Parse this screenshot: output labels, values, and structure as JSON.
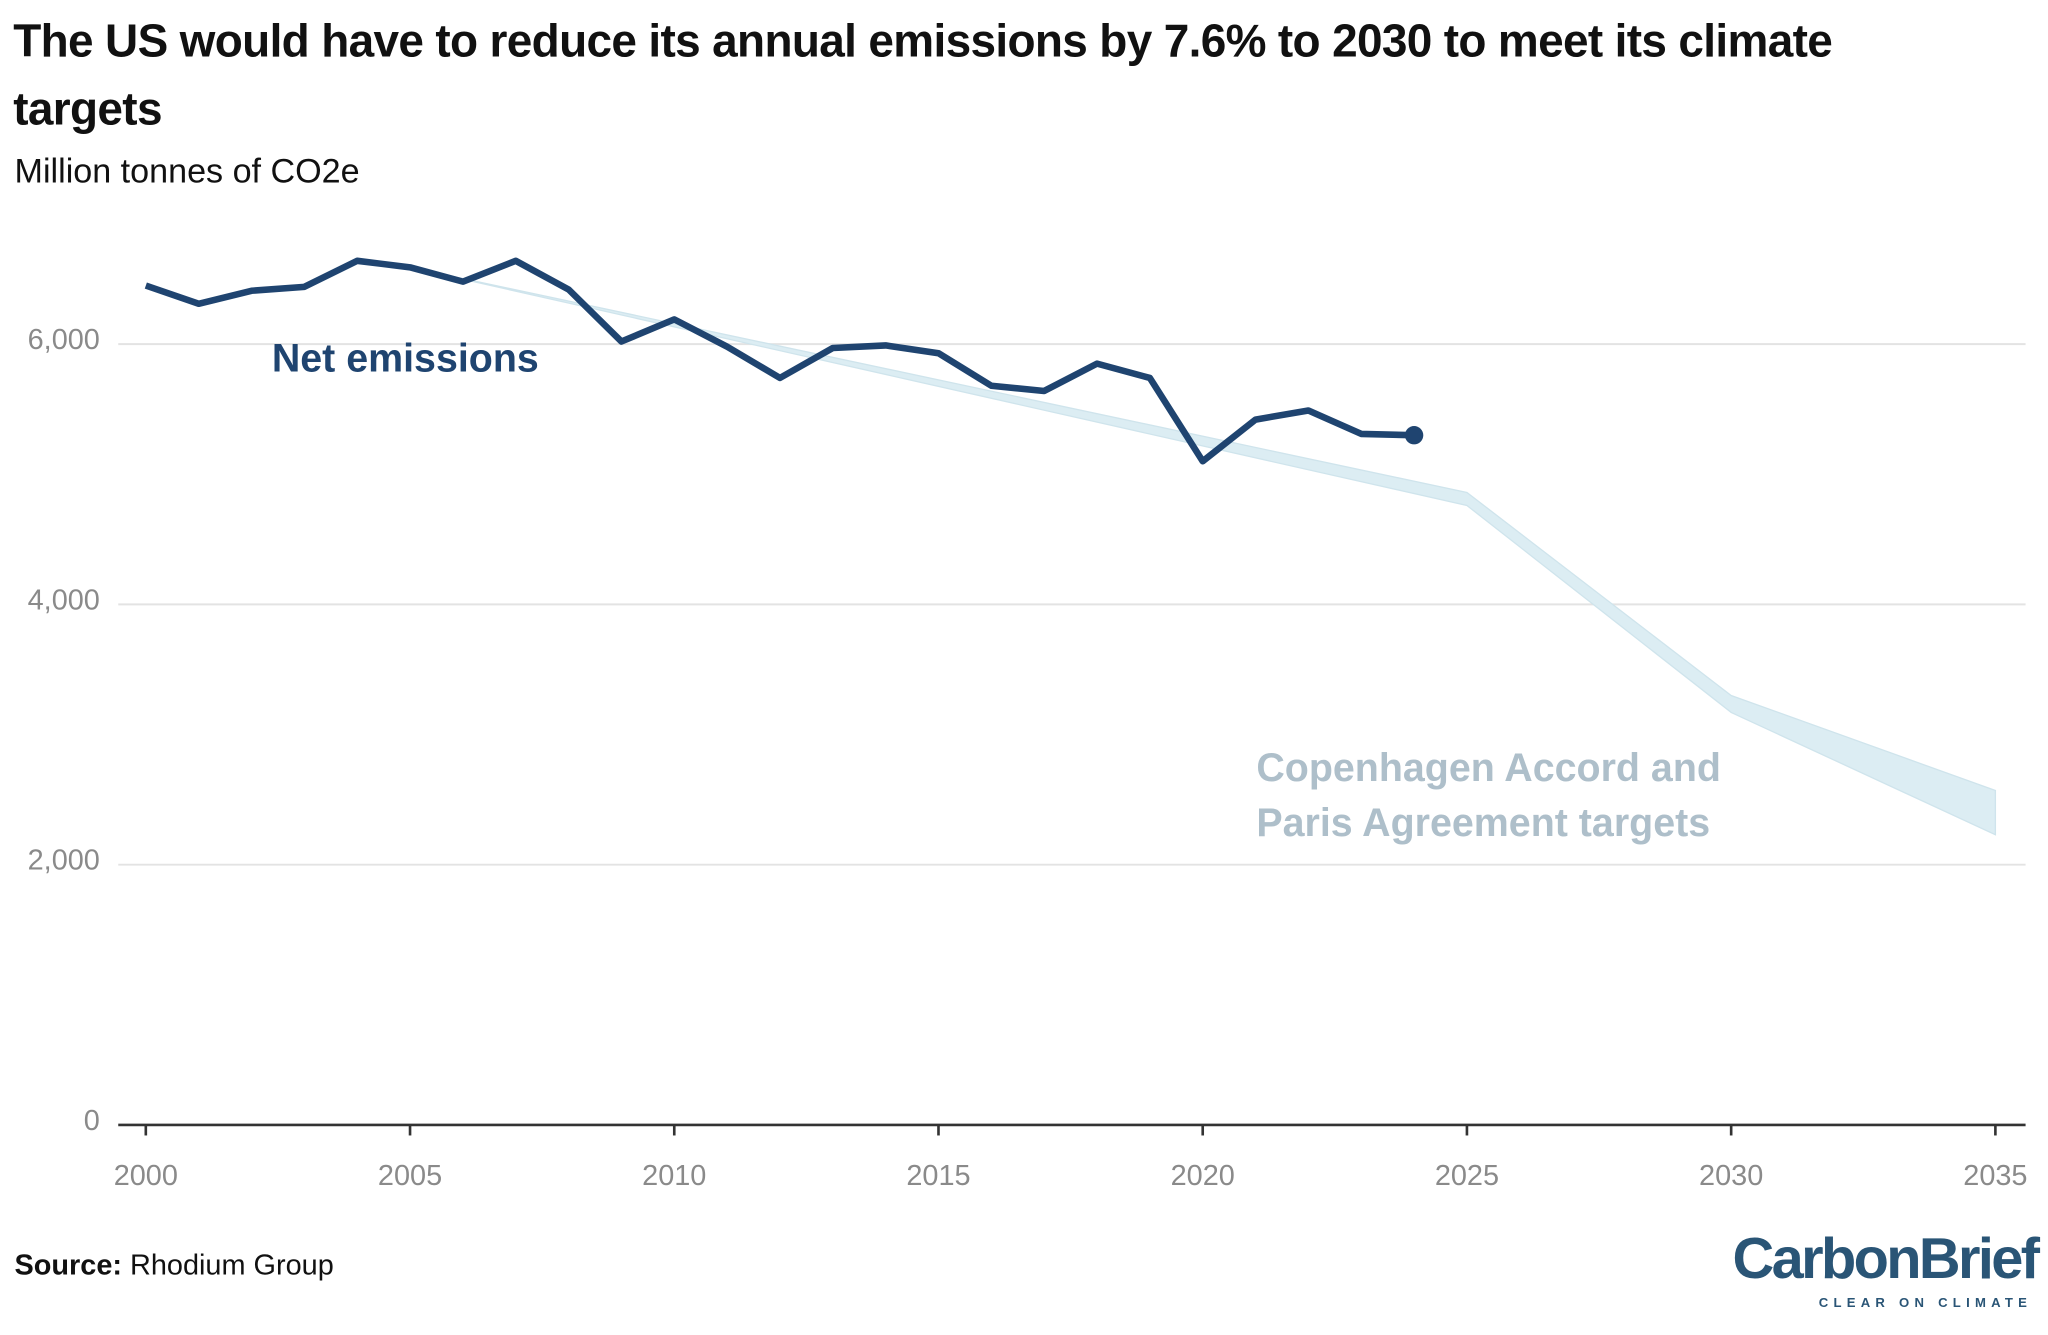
{
  "chart_data": {
    "type": "line",
    "title": "The US would have to reduce its annual emissions by 7.6% to 2030 to meet its climate targets",
    "subtitle": "Million tonnes of CO2e",
    "source_label": "Source:",
    "source": "Rhodium Group",
    "logo": "CarbonBrief",
    "logo_tagline": "CLEAR ON CLIMATE",
    "xlim": [
      2000,
      2035
    ],
    "xticks": [
      2000,
      2005,
      2010,
      2015,
      2020,
      2025,
      2030,
      2035
    ],
    "ylim": [
      0,
      7000
    ],
    "yticks": [
      0,
      {
        "value": 2000,
        "label": "2,000"
      },
      {
        "value": 4000,
        "label": "4,000"
      },
      {
        "value": 6000,
        "label": "6,000"
      }
    ],
    "grid": true,
    "series": [
      {
        "name": "Net emissions",
        "color": "#1f4470",
        "x": [
          2000,
          2001,
          2002,
          2003,
          2004,
          2005,
          2006,
          2007,
          2008,
          2009,
          2010,
          2011,
          2012,
          2013,
          2014,
          2015,
          2016,
          2017,
          2018,
          2019,
          2020,
          2021,
          2022,
          2023,
          2024
        ],
        "values": [
          6450,
          6310,
          6410,
          6440,
          6640,
          6590,
          6480,
          6640,
          6420,
          6020,
          6190,
          5980,
          5740,
          5970,
          5990,
          5930,
          5680,
          5640,
          5850,
          5740,
          5100,
          5420,
          5490,
          5310,
          5300
        ]
      },
      {
        "name": "Copenhagen Accord and Paris Agreement targets",
        "color": "#dcedf3",
        "x": [
          2005,
          2025,
          2030,
          2035
        ],
        "low": [
          6590,
          4760,
          3170,
          2230
        ],
        "high": [
          6590,
          4860,
          3300,
          2570
        ]
      }
    ]
  }
}
